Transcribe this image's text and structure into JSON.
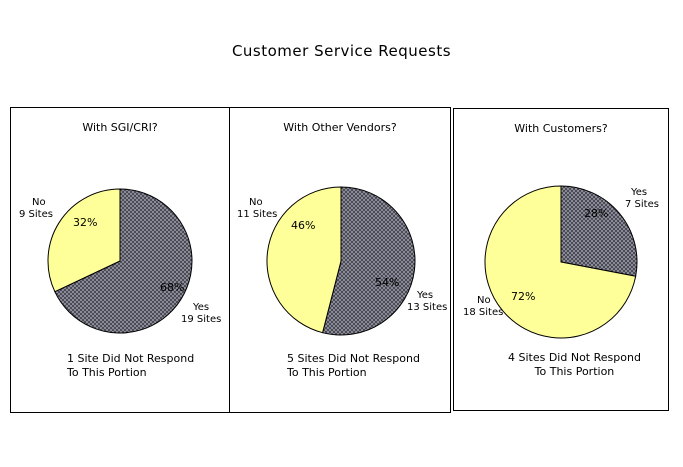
{
  "title": "Customer Service Requests",
  "colors": {
    "yes": "#8f8f9c",
    "no": "#ffff99",
    "edge": "#000000"
  },
  "chart_data": [
    {
      "type": "pie",
      "title": "With SGI/CRI?",
      "slices": [
        {
          "label": "Yes",
          "count_text": "19 Sites",
          "value": 68,
          "pct_label": "68%",
          "color": "#8f8f9c"
        },
        {
          "label": "No",
          "count_text": "9 Sites",
          "value": 32,
          "pct_label": "32%",
          "color": "#ffff99"
        }
      ],
      "note": [
        "1 Site Did Not Respond",
        "To This Portion"
      ]
    },
    {
      "type": "pie",
      "title": "With Other Vendors?",
      "slices": [
        {
          "label": "Yes",
          "count_text": "13 Sites",
          "value": 54,
          "pct_label": "54%",
          "color": "#8f8f9c"
        },
        {
          "label": "No",
          "count_text": "11 Sites",
          "value": 46,
          "pct_label": "46%",
          "color": "#ffff99"
        }
      ],
      "note": [
        "5 Sites Did Not Respond",
        "To This Portion"
      ]
    },
    {
      "type": "pie",
      "title": "With Customers?",
      "slices": [
        {
          "label": "Yes",
          "count_text": "7 Sites",
          "value": 28,
          "pct_label": "28%",
          "color": "#8f8f9c"
        },
        {
          "label": "No",
          "count_text": "18 Sites",
          "value": 72,
          "pct_label": "72%",
          "color": "#ffff99"
        }
      ],
      "note": [
        "4 Sites Did Not Respond",
        "To This Portion"
      ]
    }
  ]
}
